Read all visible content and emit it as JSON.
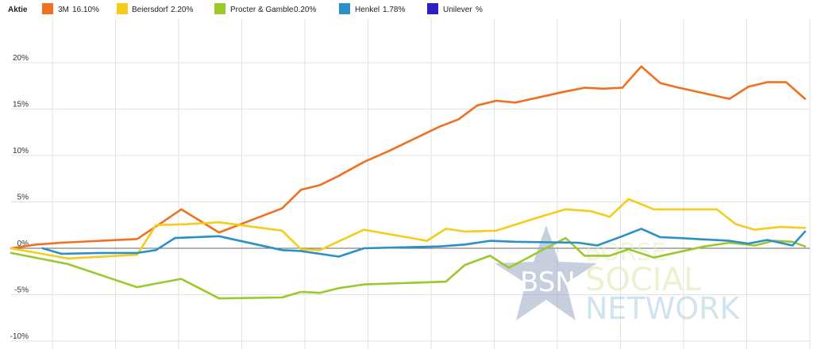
{
  "chart_data": {
    "type": "line",
    "legend_title": "Aktie",
    "legend_position": "top-left",
    "grid": true,
    "ylim": [
      -10,
      25
    ],
    "yticks": [
      {
        "value": 20,
        "label": "20%"
      },
      {
        "value": 15,
        "label": "15%"
      },
      {
        "value": 10,
        "label": "10%"
      },
      {
        "value": 5,
        "label": "5%"
      },
      {
        "value": 0,
        "label": "0%"
      },
      {
        "value": -5,
        "label": "-5%"
      },
      {
        "value": -10,
        "label": "-10%"
      }
    ],
    "series": [
      {
        "name": "3M",
        "value_label": "16.10%",
        "color": "#f07020",
        "points": [
          [
            0,
            0
          ],
          [
            2,
            0.4
          ],
          [
            4,
            0.6
          ],
          [
            10,
            1
          ],
          [
            12,
            2.8
          ],
          [
            13.5,
            4.2
          ],
          [
            16.5,
            1.7
          ],
          [
            21.5,
            4.3
          ],
          [
            23,
            6.3
          ],
          [
            24.5,
            6.8
          ],
          [
            26,
            7.8
          ],
          [
            28,
            9.3
          ],
          [
            30,
            10.5
          ],
          [
            32,
            11.8
          ],
          [
            34,
            13.1
          ],
          [
            35.5,
            13.9
          ],
          [
            37,
            15.4
          ],
          [
            38.5,
            15.9
          ],
          [
            40,
            15.7
          ],
          [
            42,
            16.3
          ],
          [
            44,
            16.9
          ],
          [
            45.5,
            17.3
          ],
          [
            47,
            17.2
          ],
          [
            48.5,
            17.3
          ],
          [
            50,
            19.6
          ],
          [
            51.5,
            17.8
          ],
          [
            53,
            17.3
          ],
          [
            55,
            16.7
          ],
          [
            57,
            16.1
          ],
          [
            58.5,
            17.4
          ],
          [
            60,
            17.9
          ],
          [
            61.5,
            17.9
          ],
          [
            63,
            16.1
          ]
        ]
      },
      {
        "name": "Beiersdorf",
        "value_label": "2.20%",
        "color": "#f5cc1a",
        "points": [
          [
            0,
            0
          ],
          [
            4.5,
            -1.1
          ],
          [
            10,
            -0.7
          ],
          [
            11.5,
            2.5
          ],
          [
            14,
            2.6
          ],
          [
            16.5,
            2.8
          ],
          [
            21.5,
            1.9
          ],
          [
            23,
            -0.1
          ],
          [
            24.5,
            -0.2
          ],
          [
            28,
            2
          ],
          [
            33,
            0.8
          ],
          [
            34.5,
            2.1
          ],
          [
            36,
            1.8
          ],
          [
            38.5,
            1.9
          ],
          [
            42,
            3.4
          ],
          [
            44,
            4.2
          ],
          [
            46,
            4
          ],
          [
            47.5,
            3.4
          ],
          [
            49,
            5.3
          ],
          [
            51,
            4.2
          ],
          [
            56,
            4.2
          ],
          [
            57.5,
            2.6
          ],
          [
            59,
            2
          ],
          [
            61,
            2.3
          ],
          [
            63,
            2.2
          ]
        ]
      },
      {
        "name": "Procter & Gamble",
        "value_label": "0.20%",
        "color": "#9bc82a",
        "points": [
          [
            0,
            -0.5
          ],
          [
            4.5,
            -1.7
          ],
          [
            10,
            -4.2
          ],
          [
            11.5,
            -3.8
          ],
          [
            13.5,
            -3.3
          ],
          [
            16.5,
            -5.4
          ],
          [
            21.5,
            -5.3
          ],
          [
            23,
            -4.7
          ],
          [
            24.5,
            -4.8
          ],
          [
            26,
            -4.3
          ],
          [
            28,
            -3.9
          ],
          [
            30,
            -3.8
          ],
          [
            34.5,
            -3.6
          ],
          [
            36,
            -1.8
          ],
          [
            38,
            -0.8
          ],
          [
            39.5,
            -2.1
          ],
          [
            42,
            -0.3
          ],
          [
            44,
            1.1
          ],
          [
            45.5,
            -0.8
          ],
          [
            47.5,
            -0.8
          ],
          [
            49,
            -0.1
          ],
          [
            51,
            -1
          ],
          [
            53,
            -0.4
          ],
          [
            55,
            0.2
          ],
          [
            57,
            0.6
          ],
          [
            59,
            0.3
          ],
          [
            60.5,
            0.8
          ],
          [
            62,
            0.7
          ],
          [
            63,
            0.2
          ]
        ]
      },
      {
        "name": "Henkel",
        "value_label": "1.78%",
        "color": "#2a90c8",
        "points": [
          [
            2.5,
            0
          ],
          [
            4,
            -0.6
          ],
          [
            7,
            -0.5
          ],
          [
            10,
            -0.5
          ],
          [
            11.5,
            -0.2
          ],
          [
            13,
            1.1
          ],
          [
            16.5,
            1.3
          ],
          [
            21.5,
            -0.2
          ],
          [
            23,
            -0.3
          ],
          [
            26,
            -0.9
          ],
          [
            28,
            0
          ],
          [
            31,
            0.1
          ],
          [
            34,
            0.2
          ],
          [
            36,
            0.4
          ],
          [
            38,
            0.8
          ],
          [
            40,
            0.7
          ],
          [
            45,
            0.6
          ],
          [
            46.5,
            0.3
          ],
          [
            48.5,
            1.3
          ],
          [
            50,
            2.1
          ],
          [
            51.5,
            1.2
          ],
          [
            53,
            1.1
          ],
          [
            57,
            0.8
          ],
          [
            58.5,
            0.5
          ],
          [
            60,
            0.9
          ],
          [
            62,
            0.3
          ],
          [
            63,
            1.8
          ]
        ]
      },
      {
        "name": "Unilever",
        "value_label": "%",
        "color": "#2b1fc6",
        "points": []
      }
    ]
  },
  "watermark": {
    "star_text": "BSN",
    "line1": "BÖRSE",
    "line2": "SOCIAL",
    "line3": "NETWORK"
  }
}
